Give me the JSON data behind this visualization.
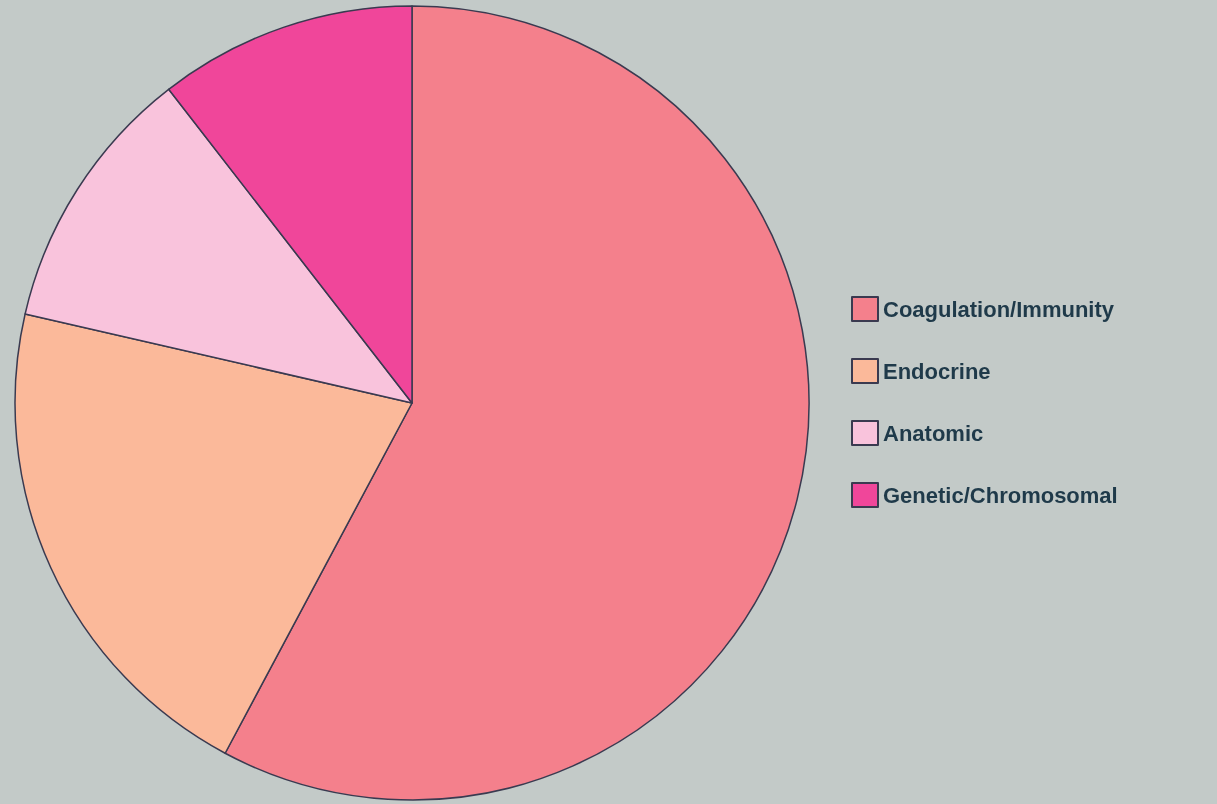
{
  "chart_data": {
    "type": "pie",
    "categories": [
      "Coagulation/Immunity",
      "Endocrine",
      "Anatomic",
      "Genetic/Chromosomal"
    ],
    "values": [
      57.8,
      20.8,
      10.9,
      10.5
    ],
    "colors": [
      "#f4808c",
      "#fbb99a",
      "#f9c3dc",
      "#f0469a"
    ],
    "legend": "right"
  }
}
